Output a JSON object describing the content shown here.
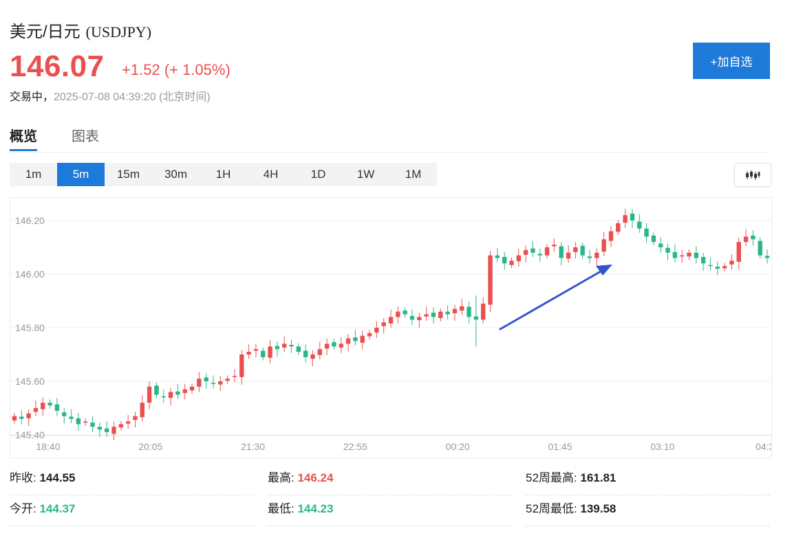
{
  "header": {
    "title": "美元/日元",
    "symbol": "(USDJPY)",
    "price": "146.07",
    "change": "+1.52 (+ 1.05%)",
    "status": "交易中，",
    "timestamp": "2025-07-08 04:39:20 (北京时间)",
    "add_button": "+加自选"
  },
  "tabs": [
    {
      "label": "概览",
      "active": true
    },
    {
      "label": "图表",
      "active": false
    }
  ],
  "intervals": [
    "1m",
    "5m",
    "15m",
    "30m",
    "1H",
    "4H",
    "1D",
    "1W",
    "1M"
  ],
  "active_interval": "5m",
  "chart_data": {
    "type": "candlestick",
    "ylim": [
      145.4,
      146.28
    ],
    "y_ticks": [
      "146.20",
      "146.00",
      "145.80",
      "145.60",
      "145.40"
    ],
    "x_ticks": [
      "18:40",
      "20:05",
      "21:30",
      "22:55",
      "00:20",
      "01:45",
      "03:10",
      "04:3"
    ],
    "up_color": "#e9504f",
    "down_color": "#2bb588",
    "grid": true,
    "annotation": "blue-arrow",
    "closes": [
      145.47,
      145.46,
      145.48,
      145.5,
      145.52,
      145.51,
      145.49,
      145.47,
      145.46,
      145.44,
      145.45,
      145.43,
      145.42,
      145.41,
      145.43,
      145.44,
      145.45,
      145.47,
      145.52,
      145.58,
      145.55,
      145.54,
      145.56,
      145.55,
      145.57,
      145.58,
      145.61,
      145.6,
      145.59,
      145.6,
      145.61,
      145.62,
      145.7,
      145.71,
      145.72,
      145.69,
      145.73,
      145.72,
      145.74,
      145.73,
      145.71,
      145.69,
      145.7,
      145.72,
      145.74,
      145.73,
      145.74,
      145.76,
      145.75,
      145.77,
      145.78,
      145.8,
      145.82,
      145.84,
      145.86,
      145.85,
      145.83,
      145.84,
      145.85,
      145.84,
      145.86,
      145.85,
      145.87,
      145.88,
      145.84,
      145.83,
      145.89,
      146.07,
      146.06,
      146.04,
      146.05,
      146.07,
      146.09,
      146.08,
      146.07,
      146.1,
      146.11,
      146.06,
      146.08,
      146.1,
      146.07,
      146.06,
      146.08,
      146.13,
      146.16,
      146.19,
      146.22,
      146.2,
      146.17,
      146.14,
      146.12,
      146.1,
      146.08,
      146.06,
      146.07,
      146.08,
      146.06,
      146.04,
      146.03,
      146.02,
      146.03,
      146.05,
      146.12,
      146.14,
      146.13,
      146.07,
      146.06
    ],
    "series": [
      {
        "name": "USDJPY",
        "values": [
          146.07
        ]
      }
    ]
  },
  "stats": [
    {
      "label": "昨收:",
      "value": "144.55",
      "dir": "flat"
    },
    {
      "label": "最高:",
      "value": "146.24",
      "dir": "up"
    },
    {
      "label": "52周最高:",
      "value": "161.81",
      "dir": "flat"
    },
    {
      "label": "今开:",
      "value": "144.37",
      "dir": "down"
    },
    {
      "label": "最低:",
      "value": "144.23",
      "dir": "down"
    },
    {
      "label": "52周最低:",
      "value": "139.58",
      "dir": "flat"
    }
  ]
}
